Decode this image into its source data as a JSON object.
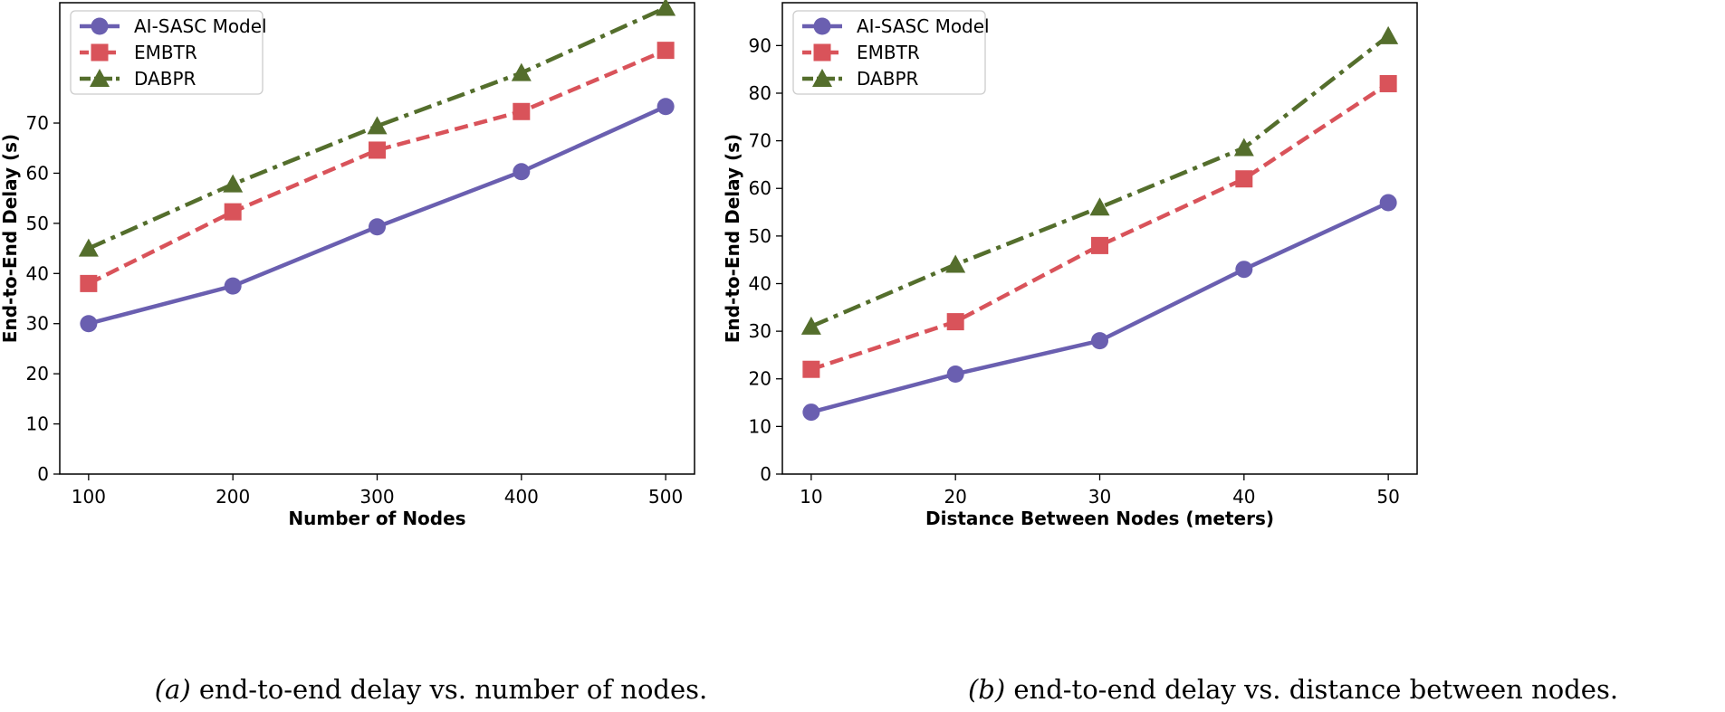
{
  "chart_data": [
    {
      "type": "line",
      "title": "",
      "xlabel": "Number of Nodes",
      "ylabel": "End-to-End Delay (s)",
      "x": [
        100,
        200,
        300,
        400,
        500
      ],
      "x_ticks": [
        "100",
        "200",
        "300",
        "400",
        "500"
      ],
      "xlim": [
        80,
        520
      ],
      "y_ticks": [
        "0",
        "10",
        "20",
        "30",
        "40",
        "50",
        "60",
        "70"
      ],
      "ylim": [
        0,
        94
      ],
      "grid": false,
      "legend": "top-left",
      "series": [
        {
          "name": "AI-SASC Model",
          "values": [
            30,
            37.5,
            49.3,
            60.3,
            73.3
          ],
          "color": "#6a5fb0",
          "marker": "circle",
          "style": "solid"
        },
        {
          "name": "EMBTR",
          "values": [
            38,
            52.3,
            64.6,
            72.3,
            84.5
          ],
          "color": "#d9535a",
          "marker": "square",
          "style": "dashed"
        },
        {
          "name": "DABPR",
          "values": [
            45,
            57.8,
            69.4,
            80,
            93
          ],
          "color": "#546e2c",
          "marker": "triangle",
          "style": "dashdot"
        }
      ],
      "caption": {
        "label": "(a)",
        "text": " end-to-end delay vs. number of nodes."
      }
    },
    {
      "type": "line",
      "title": "",
      "xlabel": "Distance Between Nodes (meters)",
      "ylabel": "End-to-End Delay (s)",
      "x": [
        10,
        20,
        30,
        40,
        50
      ],
      "x_ticks": [
        "10",
        "20",
        "30",
        "40",
        "50"
      ],
      "xlim": [
        8,
        52
      ],
      "y_ticks": [
        "0",
        "10",
        "20",
        "30",
        "40",
        "50",
        "60",
        "70",
        "80",
        "90"
      ],
      "ylim": [
        0,
        99
      ],
      "grid": false,
      "legend": "top-left",
      "series": [
        {
          "name": "AI-SASC Model",
          "values": [
            13,
            21,
            28,
            43,
            57
          ],
          "color": "#6a5fb0",
          "marker": "circle",
          "style": "solid"
        },
        {
          "name": "EMBTR",
          "values": [
            22,
            32,
            48,
            62,
            82
          ],
          "color": "#d9535a",
          "marker": "square",
          "style": "dashed"
        },
        {
          "name": "DABPR",
          "values": [
            31,
            44,
            56,
            68.5,
            92
          ],
          "color": "#546e2c",
          "marker": "triangle",
          "style": "dashdot"
        }
      ],
      "caption": {
        "label": "(b)",
        "text": " end-to-end delay vs. distance between nodes."
      }
    }
  ]
}
